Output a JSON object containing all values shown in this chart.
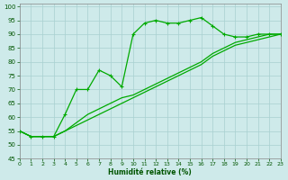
{
  "xlabel": "Humidité relative (%)",
  "background_color": "#ceeaea",
  "grid_color": "#a8d0d0",
  "line_color": "#00aa00",
  "xlim": [
    0,
    23
  ],
  "ylim": [
    45,
    101
  ],
  "yticks": [
    45,
    50,
    55,
    60,
    65,
    70,
    75,
    80,
    85,
    90,
    95,
    100
  ],
  "xticks": [
    0,
    1,
    2,
    3,
    4,
    5,
    6,
    7,
    8,
    9,
    10,
    11,
    12,
    13,
    14,
    15,
    16,
    17,
    18,
    19,
    20,
    21,
    22,
    23
  ],
  "line1_x": [
    0,
    1,
    2,
    3,
    4,
    5,
    6,
    7,
    8,
    9,
    10,
    11,
    12,
    13,
    14,
    15,
    16,
    17,
    18,
    19,
    20,
    21,
    22,
    23
  ],
  "line1_y": [
    55,
    53,
    53,
    53,
    61,
    70,
    70,
    77,
    75,
    71,
    90,
    94,
    95,
    94,
    94,
    95,
    96,
    93,
    90,
    89,
    89,
    90,
    90,
    90
  ],
  "line2_x": [
    0,
    1,
    2,
    3,
    4,
    5,
    6,
    7,
    8,
    9,
    10,
    11,
    12,
    13,
    14,
    15,
    16,
    17,
    18,
    19,
    20,
    21,
    22,
    23
  ],
  "line2_y": [
    55,
    53,
    53,
    53,
    55,
    58,
    61,
    63,
    65,
    67,
    68,
    70,
    72,
    74,
    76,
    78,
    80,
    83,
    85,
    87,
    88,
    89,
    90,
    90
  ],
  "line3_x": [
    0,
    1,
    2,
    3,
    4,
    5,
    6,
    7,
    8,
    9,
    10,
    11,
    12,
    13,
    14,
    15,
    16,
    17,
    18,
    19,
    20,
    21,
    22,
    23
  ],
  "line3_y": [
    55,
    53,
    53,
    53,
    55,
    57,
    59,
    61,
    63,
    65,
    67,
    69,
    71,
    73,
    75,
    77,
    79,
    82,
    84,
    86,
    87,
    88,
    89,
    90
  ]
}
